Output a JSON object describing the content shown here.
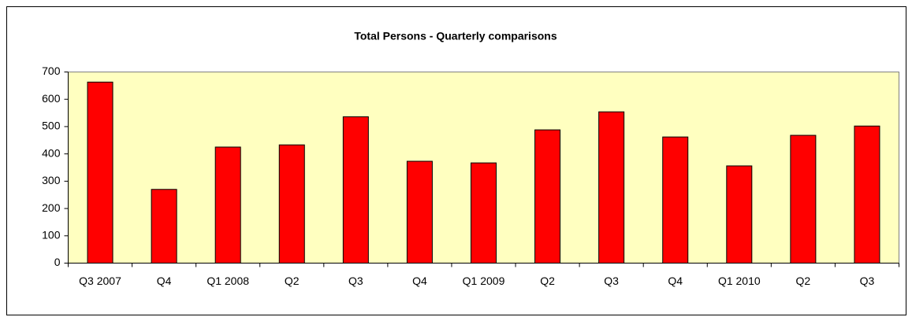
{
  "chart_data": {
    "type": "bar",
    "title": "Total Persons - Quarterly comparisons",
    "categories": [
      "Q3 2007",
      "Q4",
      "Q1 2008",
      "Q2",
      "Q3",
      "Q4",
      "Q1 2009",
      "Q2",
      "Q3",
      "Q4",
      "Q1 2010",
      "Q2",
      "Q3"
    ],
    "values": [
      663,
      270,
      425,
      433,
      536,
      373,
      367,
      488,
      554,
      462,
      356,
      468,
      502
    ],
    "color": "#ff0000",
    "ylim": [
      0,
      700
    ],
    "yticks": [
      0,
      100,
      200,
      300,
      400,
      500,
      600,
      700
    ],
    "grid": false
  }
}
